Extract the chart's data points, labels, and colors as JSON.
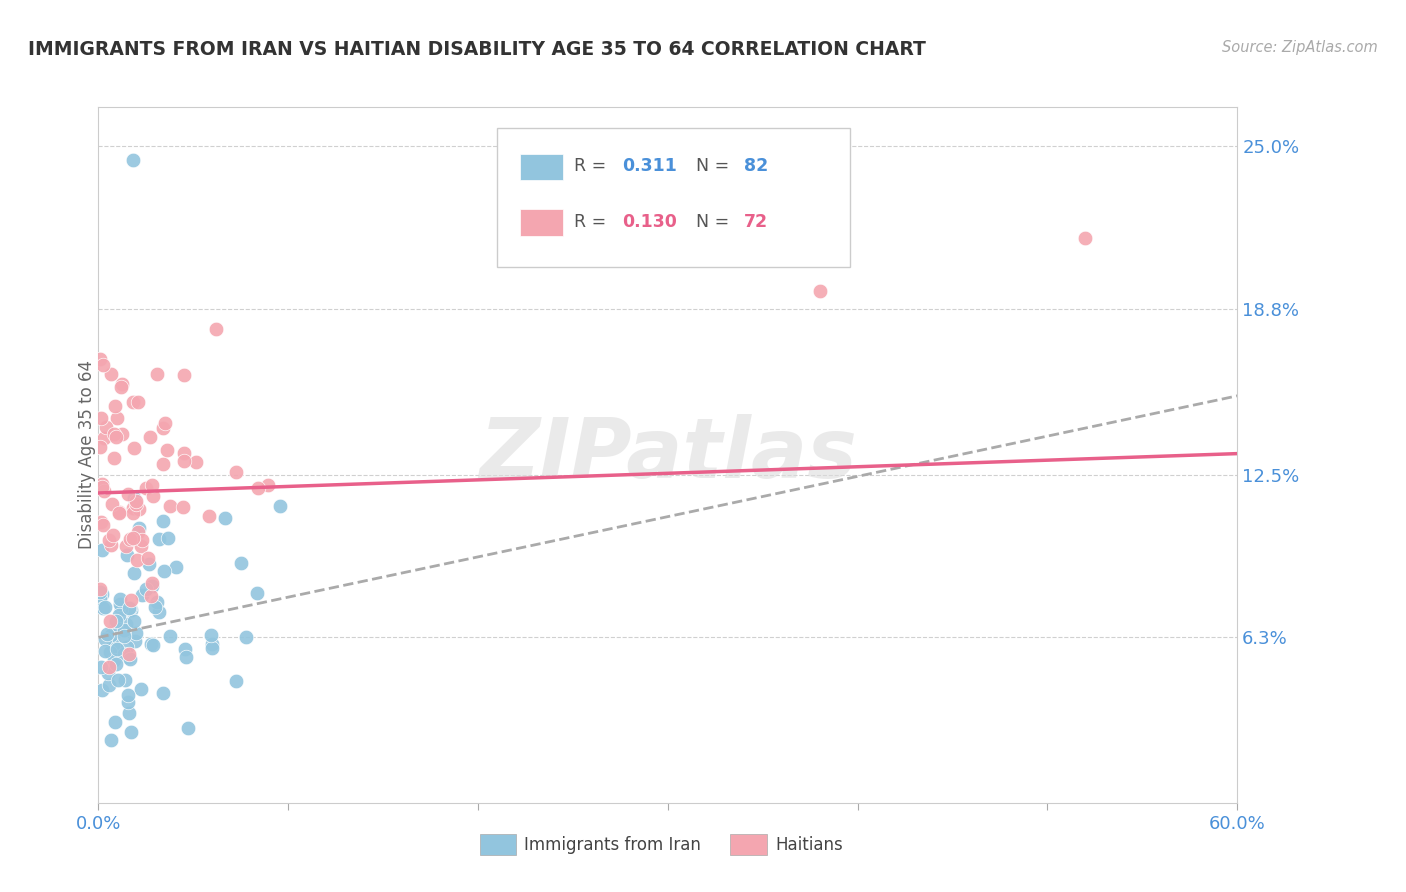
{
  "title": "IMMIGRANTS FROM IRAN VS HAITIAN DISABILITY AGE 35 TO 64 CORRELATION CHART",
  "source": "Source: ZipAtlas.com",
  "ylabel": "Disability Age 35 to 64",
  "yticks": [
    0.063,
    0.125,
    0.188,
    0.25
  ],
  "ytick_labels": [
    "6.3%",
    "12.5%",
    "18.8%",
    "25.0%"
  ],
  "xmin": 0.0,
  "xmax": 0.6,
  "ymin": 0.0,
  "ymax": 0.265,
  "color_iran": "#92c5de",
  "color_haiti": "#f4a6b0",
  "color_iran_line": "#aaaaaa",
  "color_haiti_line": "#e8608a",
  "watermark": "ZIPatlas",
  "iran_r": "0.311",
  "iran_n": "82",
  "haiti_r": "0.130",
  "haiti_n": "72",
  "iran_line_start_y": 0.063,
  "iran_line_end_y": 0.155,
  "haiti_line_start_y": 0.118,
  "haiti_line_end_y": 0.133
}
